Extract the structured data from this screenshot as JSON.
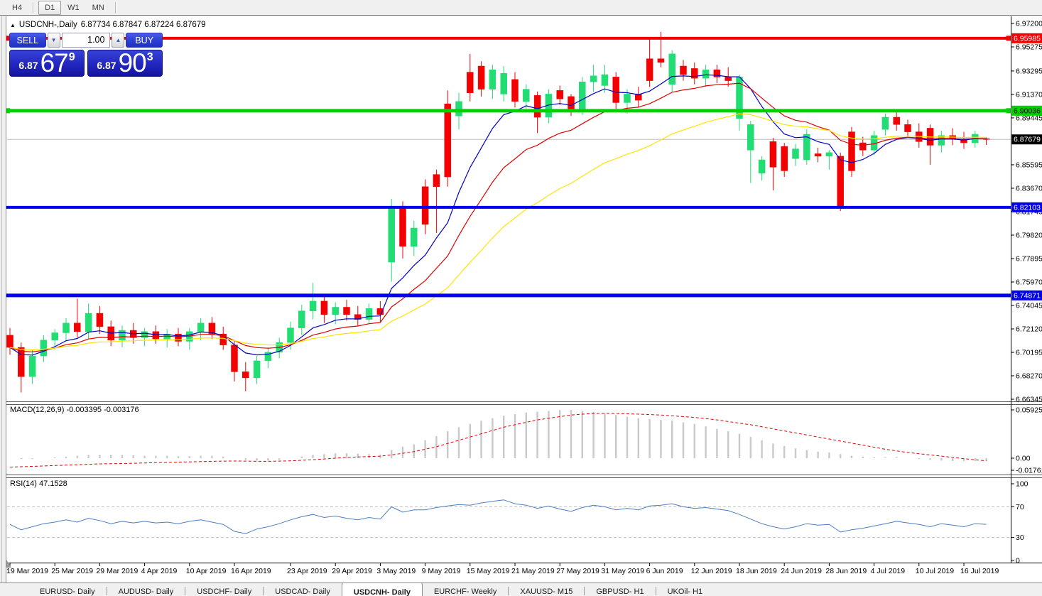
{
  "toolbar": {
    "timeframes": [
      {
        "label": "H4",
        "active": false
      },
      {
        "label": "D1",
        "active": true
      },
      {
        "label": "W1",
        "active": false
      },
      {
        "label": "MN",
        "active": false
      }
    ]
  },
  "chart": {
    "title_symbol": "USDCNH-,Daily",
    "title_ohlc": "6.87734 6.87847 6.87224 6.87679"
  },
  "trade_panel": {
    "sell_label": "SELL",
    "buy_label": "BUY",
    "volume": "1.00",
    "sell_price_big": "6.87",
    "sell_price_main": "67",
    "sell_price_sup": "9",
    "buy_price_big": "6.87",
    "buy_price_main": "90",
    "buy_price_sup": "3"
  },
  "indicators": {
    "macd_label": "MACD(12,26,9) -0.003395 -0.003176",
    "rsi_label": "RSI(14) 47.1528",
    "macd_axis": [
      {
        "label": "0.059256",
        "value": 0.059256
      },
      {
        "label": "0.00",
        "value": 0
      },
      {
        "label": "-0.017612",
        "value": -0.017612
      }
    ],
    "rsi_axis": [
      {
        "label": "100",
        "value": 100
      },
      {
        "label": "70",
        "value": 70
      },
      {
        "label": "30",
        "value": 30
      },
      {
        "label": "0",
        "value": 0
      }
    ]
  },
  "tabs": [
    {
      "label": "EURUSD- Daily",
      "active": false
    },
    {
      "label": "AUDUSD- Daily",
      "active": false
    },
    {
      "label": "USDCHF- Daily",
      "active": false
    },
    {
      "label": "USDCAD- Daily",
      "active": false
    },
    {
      "label": "USDCNH- Daily",
      "active": true
    },
    {
      "label": "EURCHF- Weekly",
      "active": false
    },
    {
      "label": "XAUUSD- M15",
      "active": false
    },
    {
      "label": "GBPUSD- H1",
      "active": false
    },
    {
      "label": "UKOil- H1",
      "active": false
    }
  ],
  "chart_data": {
    "type": "candlestick",
    "symbol": "USDCNH",
    "timeframe": "Daily",
    "title": "USDCNH-,Daily",
    "last_ohlc": {
      "open": 6.87734,
      "high": 6.87847,
      "low": 6.87224,
      "close": 6.87679
    },
    "ylim": [
      6.66345,
      6.972
    ],
    "grid": false,
    "colors": {
      "bull": "#21DD74",
      "bear": "#F40000"
    },
    "y_axis_ticks": [
      6.972,
      6.95275,
      6.93295,
      6.9137,
      6.89445,
      6.85595,
      6.8367,
      6.81745,
      6.7982,
      6.77895,
      6.7597,
      6.74045,
      6.7212,
      6.70195,
      6.6827,
      6.66345
    ],
    "current_price": {
      "price": 6.87679,
      "line_color": "#BBBBBB",
      "badge_color": "#000000",
      "badge_text": "#FFFFFF"
    },
    "levels": [
      {
        "price": 6.95985,
        "color": "#F80000",
        "thickness": 4,
        "selected": true,
        "badge_text": "#FFFFFF"
      },
      {
        "price": 6.90036,
        "color": "#00D200",
        "thickness": 5,
        "selected": true,
        "badge_text": "#000000"
      },
      {
        "price": 6.82103,
        "color": "#0000F0",
        "thickness": 4,
        "selected": false,
        "badge_text": "#FFFFFF"
      },
      {
        "price": 6.74871,
        "color": "#0000F0",
        "thickness": 5,
        "selected": false,
        "badge_text": "#FFFFFF"
      }
    ],
    "moving_averages": [
      {
        "period": 7,
        "color": "#0000C8"
      },
      {
        "period": 14,
        "color": "#E00000"
      },
      {
        "period": 28,
        "color": "#FFE400"
      }
    ],
    "date_ticks": [
      {
        "i": 0,
        "label": "19 Mar 2019"
      },
      {
        "i": 4,
        "label": "25 Mar 2019"
      },
      {
        "i": 8,
        "label": "29 Mar 2019"
      },
      {
        "i": 12,
        "label": "4 Apr 2019"
      },
      {
        "i": 16,
        "label": "10 Apr 2019"
      },
      {
        "i": 20,
        "label": "16 Apr 2019"
      },
      {
        "i": 25,
        "label": "23 Apr 2019"
      },
      {
        "i": 29,
        "label": "29 Apr 2019"
      },
      {
        "i": 33,
        "label": "3 May 2019"
      },
      {
        "i": 37,
        "label": "9 May 2019"
      },
      {
        "i": 41,
        "label": "15 May 2019"
      },
      {
        "i": 45,
        "label": "21 May 2019"
      },
      {
        "i": 49,
        "label": "27 May 2019"
      },
      {
        "i": 53,
        "label": "31 May 2019"
      },
      {
        "i": 57,
        "label": "6 Jun 2019"
      },
      {
        "i": 61,
        "label": "12 Jun 2019"
      },
      {
        "i": 65,
        "label": "18 Jun 2019"
      },
      {
        "i": 69,
        "label": "24 Jun 2019"
      },
      {
        "i": 73,
        "label": "28 Jun 2019"
      },
      {
        "i": 77,
        "label": "4 Jul 2019"
      },
      {
        "i": 81,
        "label": "10 Jul 2019"
      },
      {
        "i": 85,
        "label": "16 Jul 2019"
      }
    ],
    "candles": [
      [
        6.716,
        6.722,
        6.7,
        6.706
      ],
      [
        6.706,
        6.71,
        6.669,
        6.682
      ],
      [
        6.682,
        6.704,
        6.676,
        6.699
      ],
      [
        6.699,
        6.716,
        6.694,
        6.712
      ],
      [
        6.712,
        6.721,
        6.704,
        6.718
      ],
      [
        6.718,
        6.73,
        6.711,
        6.726
      ],
      [
        6.726,
        6.746,
        6.714,
        6.719
      ],
      [
        6.719,
        6.742,
        6.713,
        6.734
      ],
      [
        6.734,
        6.74,
        6.717,
        6.723
      ],
      [
        6.723,
        6.728,
        6.707,
        6.712
      ],
      [
        6.712,
        6.724,
        6.706,
        6.72
      ],
      [
        6.72,
        6.726,
        6.709,
        6.714
      ],
      [
        6.714,
        6.722,
        6.707,
        6.719
      ],
      [
        6.719,
        6.724,
        6.709,
        6.713
      ],
      [
        6.713,
        6.721,
        6.706,
        6.717
      ],
      [
        6.717,
        6.722,
        6.707,
        6.711
      ],
      [
        6.711,
        6.722,
        6.704,
        6.719
      ],
      [
        6.719,
        6.73,
        6.712,
        6.726
      ],
      [
        6.726,
        6.731,
        6.713,
        6.717
      ],
      [
        6.717,
        6.723,
        6.704,
        6.708
      ],
      [
        6.708,
        6.712,
        6.678,
        6.686
      ],
      [
        6.686,
        6.694,
        6.67,
        6.681
      ],
      [
        6.681,
        6.699,
        6.676,
        6.695
      ],
      [
        6.695,
        6.706,
        6.689,
        6.702
      ],
      [
        6.702,
        6.714,
        6.697,
        6.71
      ],
      [
        6.71,
        6.727,
        6.704,
        6.722
      ],
      [
        6.722,
        6.741,
        6.716,
        6.736
      ],
      [
        6.736,
        6.759,
        6.729,
        6.744
      ],
      [
        6.744,
        6.749,
        6.726,
        6.733
      ],
      [
        6.733,
        6.743,
        6.725,
        6.739
      ],
      [
        6.739,
        6.745,
        6.728,
        6.733
      ],
      [
        6.733,
        6.74,
        6.724,
        6.729
      ],
      [
        6.729,
        6.742,
        6.725,
        6.738
      ],
      [
        6.738,
        6.744,
        6.727,
        6.733
      ],
      [
        6.776,
        6.828,
        6.76,
        6.822
      ],
      [
        6.822,
        6.826,
        6.779,
        6.789
      ],
      [
        6.789,
        6.81,
        6.781,
        6.804
      ],
      [
        6.838,
        6.844,
        6.799,
        6.807
      ],
      [
        6.848,
        6.852,
        6.8,
        6.838
      ],
      [
        6.906,
        6.917,
        6.838,
        6.846
      ],
      [
        6.896,
        6.915,
        6.885,
        6.908
      ],
      [
        6.932,
        6.947,
        6.908,
        6.915
      ],
      [
        6.937,
        6.941,
        6.912,
        6.918
      ],
      [
        6.918,
        6.938,
        6.91,
        6.934
      ],
      [
        6.914,
        6.937,
        6.908,
        6.931
      ],
      [
        6.926,
        6.932,
        6.903,
        6.908
      ],
      [
        6.908,
        6.922,
        6.902,
        6.918
      ],
      [
        6.913,
        6.916,
        6.882,
        6.895
      ],
      [
        6.895,
        6.918,
        6.89,
        6.914
      ],
      [
        6.917,
        6.921,
        6.905,
        6.91
      ],
      [
        6.912,
        6.914,
        6.896,
        6.9
      ],
      [
        6.9,
        6.928,
        6.897,
        6.924
      ],
      [
        6.924,
        6.938,
        6.916,
        6.929
      ],
      [
        6.921,
        6.938,
        6.915,
        6.93
      ],
      [
        6.928,
        6.932,
        6.902,
        6.907
      ],
      [
        6.907,
        6.918,
        6.898,
        6.914
      ],
      [
        6.914,
        6.92,
        6.903,
        6.909
      ],
      [
        6.943,
        6.959,
        6.92,
        6.925
      ],
      [
        6.943,
        6.965,
        6.936,
        6.94
      ],
      [
        6.922,
        6.95,
        6.916,
        6.947
      ],
      [
        6.937,
        6.942,
        6.925,
        6.93
      ],
      [
        6.935,
        6.94,
        6.922,
        6.927
      ],
      [
        6.927,
        6.938,
        6.92,
        6.934
      ],
      [
        6.934,
        6.938,
        6.923,
        6.928
      ],
      [
        6.928,
        6.936,
        6.92,
        6.925
      ],
      [
        6.894,
        6.93,
        6.884,
        6.928
      ],
      [
        6.868,
        6.892,
        6.841,
        6.889
      ],
      [
        6.849,
        6.863,
        6.843,
        6.86
      ],
      [
        6.875,
        6.878,
        6.835,
        6.854
      ],
      [
        6.871,
        6.874,
        6.846,
        6.851
      ],
      [
        6.861,
        6.873,
        6.855,
        6.869
      ],
      [
        6.86,
        6.885,
        6.856,
        6.881
      ],
      [
        6.865,
        6.87,
        6.858,
        6.863
      ],
      [
        6.863,
        6.868,
        6.852,
        6.866
      ],
      [
        6.863,
        6.866,
        6.818,
        6.822
      ],
      [
        6.883,
        6.887,
        6.846,
        6.851
      ],
      [
        6.874,
        6.879,
        6.863,
        6.868
      ],
      [
        6.868,
        6.884,
        6.864,
        6.88
      ],
      [
        6.885,
        6.898,
        6.88,
        6.895
      ],
      [
        6.895,
        6.899,
        6.884,
        6.889
      ],
      [
        6.889,
        6.893,
        6.878,
        6.883
      ],
      [
        6.883,
        6.89,
        6.87,
        6.875
      ],
      [
        6.886,
        6.889,
        6.856,
        6.872
      ],
      [
        6.872,
        6.884,
        6.866,
        6.88
      ],
      [
        6.88,
        6.886,
        6.872,
        6.877
      ],
      [
        6.877,
        6.883,
        6.869,
        6.874
      ],
      [
        6.874,
        6.884,
        6.87,
        6.881
      ],
      [
        6.87734,
        6.87847,
        6.87224,
        6.87679
      ]
    ],
    "macd": {
      "params": "12,26,9",
      "current_main": -0.003395,
      "current_signal": -0.003176,
      "ylim": [
        -0.017612,
        0.059256
      ],
      "hist": [
        0,
        -0.001,
        -0.001,
        0,
        0.001,
        0.002,
        0.003,
        0.004,
        0.004,
        0.004,
        0.004,
        0.0035,
        0.003,
        0.003,
        0.003,
        0.0025,
        0.0025,
        0.003,
        0.003,
        0.002,
        0,
        -0.002,
        -0.003,
        -0.003,
        -0.002,
        0,
        0.002,
        0.004,
        0.005,
        0.006,
        0.006,
        0.0055,
        0.005,
        0.0045,
        0.01,
        0.014,
        0.017,
        0.022,
        0.027,
        0.033,
        0.038,
        0.042,
        0.046,
        0.049,
        0.052,
        0.054,
        0.056,
        0.057,
        0.058,
        0.059,
        0.0592,
        0.058,
        0.057,
        0.055,
        0.053,
        0.051,
        0.049,
        0.048,
        0.047,
        0.046,
        0.044,
        0.042,
        0.039,
        0.036,
        0.033,
        0.03,
        0.026,
        0.022,
        0.018,
        0.015,
        0.012,
        0.01,
        0.008,
        0.007,
        0.005,
        0.003,
        0.002,
        0.001,
        0.001,
        0.001,
        0,
        -0.001,
        -0.002,
        -0.003,
        -0.0035,
        -0.0036,
        -0.0035,
        -0.0034
      ],
      "signal": [
        -0.011,
        -0.0105,
        -0.01,
        -0.0095,
        -0.009,
        -0.0085,
        -0.008,
        -0.0075,
        -0.007,
        -0.0068,
        -0.0065,
        -0.0062,
        -0.0058,
        -0.0055,
        -0.0052,
        -0.0048,
        -0.0045,
        -0.0042,
        -0.0038,
        -0.0036,
        -0.0035,
        -0.0036,
        -0.0038,
        -0.0038,
        -0.0036,
        -0.0032,
        -0.0026,
        -0.0018,
        -0.001,
        0,
        0.001,
        0.0015,
        0.002,
        0.0025,
        0.004,
        0.006,
        0.008,
        0.011,
        0.014,
        0.018,
        0.022,
        0.026,
        0.03,
        0.034,
        0.038,
        0.041,
        0.044,
        0.047,
        0.049,
        0.051,
        0.053,
        0.054,
        0.0548,
        0.055,
        0.0548,
        0.0545,
        0.054,
        0.0535,
        0.053,
        0.052,
        0.051,
        0.05,
        0.0485,
        0.047,
        0.045,
        0.043,
        0.041,
        0.0385,
        0.036,
        0.0335,
        0.031,
        0.0285,
        0.026,
        0.0235,
        0.021,
        0.0185,
        0.016,
        0.0135,
        0.011,
        0.009,
        0.007,
        0.0055,
        0.004,
        0.0025,
        0.001,
        -0.0005,
        -0.002,
        -0.0032
      ]
    },
    "rsi": {
      "period": 14,
      "current": 47.1528,
      "levels": [
        70,
        30
      ],
      "ylim": [
        0,
        100
      ],
      "values": [
        47,
        40,
        44,
        48,
        50,
        53,
        50,
        55,
        52,
        48,
        51,
        49,
        51,
        49,
        50,
        48,
        51,
        53,
        50,
        47,
        38,
        35,
        41,
        44,
        48,
        53,
        57,
        60,
        56,
        58,
        55,
        53,
        56,
        54,
        70,
        63,
        66,
        66,
        69,
        71,
        73,
        72,
        75,
        77,
        79,
        74,
        72,
        68,
        71,
        67,
        64,
        69,
        72,
        70,
        66,
        68,
        66,
        71,
        72,
        74,
        70,
        68,
        69,
        67,
        65,
        60,
        54,
        48,
        44,
        41,
        44,
        48,
        46,
        47,
        37,
        40,
        42,
        45,
        48,
        51,
        49,
        47,
        44,
        48,
        46,
        44,
        48,
        47.15
      ]
    }
  }
}
